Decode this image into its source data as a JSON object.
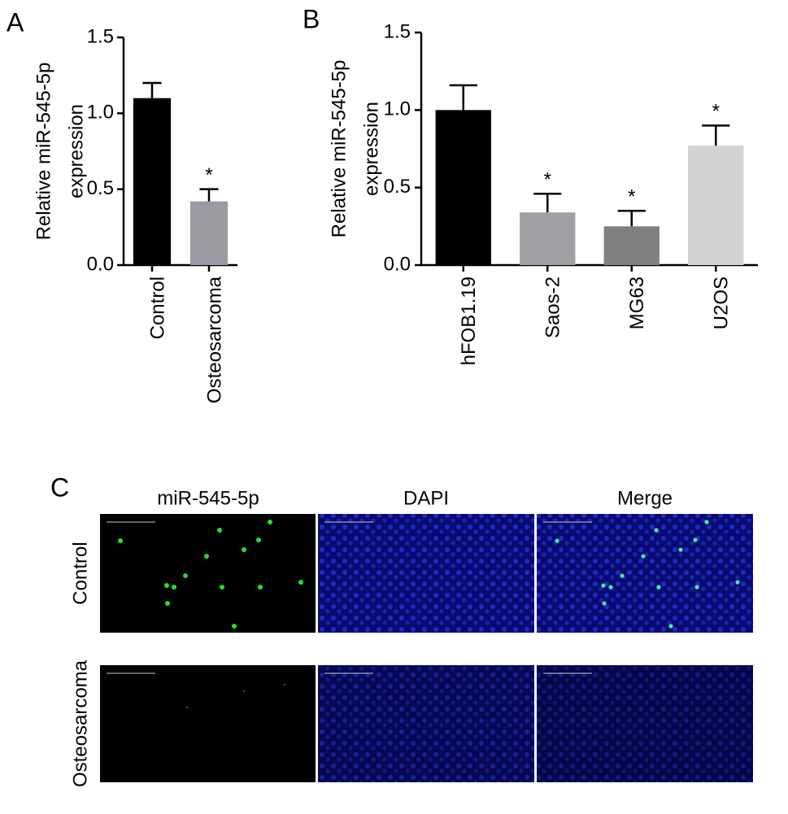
{
  "chart_data": [
    {
      "type": "bar",
      "panel_label": "A",
      "ylabel": [
        "Relative miR-545-5p",
        "expression"
      ],
      "categories": [
        "Control",
        "Osteosarcoma"
      ],
      "values": [
        1.1,
        0.42
      ],
      "errors": [
        0.1,
        0.08
      ],
      "colors": [
        "#000000",
        "#9a9ba0"
      ],
      "significance": [
        null,
        "*"
      ],
      "ylim": [
        0,
        1.5
      ],
      "yticks": [
        {
          "value": 0,
          "label": "0.0"
        },
        {
          "value": 0.5,
          "label": "0.5"
        },
        {
          "value": 1,
          "label": "1.0"
        },
        {
          "value": 1.5,
          "label": "1.5"
        }
      ]
    },
    {
      "type": "bar",
      "panel_label": "B",
      "ylabel": [
        "Relative miR-545-5p",
        "expression"
      ],
      "categories": [
        "hFOB1.19",
        "Saos-2",
        "MG63",
        "U2OS"
      ],
      "values": [
        1.0,
        0.34,
        0.25,
        0.77
      ],
      "errors": [
        0.16,
        0.12,
        0.1,
        0.13
      ],
      "colors": [
        "#000000",
        "#a0a1a5",
        "#808080",
        "#d3d3d3"
      ],
      "significance": [
        null,
        "*",
        "*",
        "*"
      ],
      "ylim": [
        0,
        1.5
      ],
      "yticks": [
        {
          "value": 0,
          "label": "0.0"
        },
        {
          "value": 0.5,
          "label": "0.5"
        },
        {
          "value": 1,
          "label": "1.0"
        },
        {
          "value": 1.5,
          "label": "1.5"
        }
      ]
    }
  ],
  "panel_c": {
    "panel_label": "C",
    "columns": [
      "miR-545-5p",
      "DAPI",
      "Merge"
    ],
    "rows": [
      "Control",
      "Osteosarcoma"
    ]
  }
}
